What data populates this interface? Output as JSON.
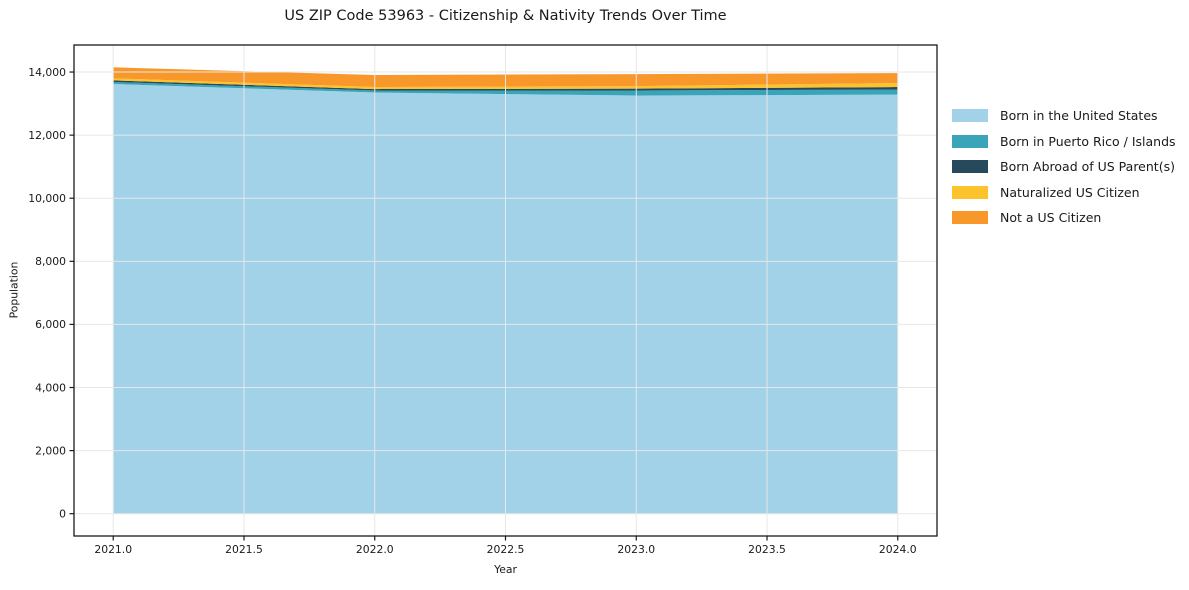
{
  "chart_data": {
    "type": "area",
    "stacked": true,
    "title": "US ZIP Code 53963 - Citizenship & Nativity Trends Over Time",
    "xlabel": "Year",
    "ylabel": "Population",
    "x": [
      2021,
      2022,
      2023,
      2024
    ],
    "series": [
      {
        "name": "Born in the United States",
        "color": "#a2d2e7",
        "values": [
          13620,
          13350,
          13255,
          13285
        ]
      },
      {
        "name": "Born in Puerto Rico / Islands",
        "color": "#3aa4b9",
        "values": [
          65,
          65,
          160,
          160
        ]
      },
      {
        "name": "Born Abroad of US Parent(s)",
        "color": "#27495c",
        "values": [
          50,
          45,
          60,
          80
        ]
      },
      {
        "name": "Naturalized US Citizen",
        "color": "#fcc32d",
        "values": [
          65,
          65,
          80,
          125
        ]
      },
      {
        "name": "Not a US Citizen",
        "color": "#f8982a",
        "values": [
          350,
          380,
          380,
          315
        ]
      }
    ],
    "totals": [
      14150,
      13905,
      13935,
      13965
    ],
    "xlim": [
      2020.85,
      2024.15
    ],
    "ylim": [
      -707,
      14857
    ],
    "xticks": [
      2021.0,
      2021.5,
      2022.0,
      2022.5,
      2023.0,
      2023.5,
      2024.0
    ],
    "yticks": [
      0,
      2000,
      4000,
      6000,
      8000,
      10000,
      12000,
      14000
    ],
    "grid": true,
    "grid_color": "#e7e7e7",
    "axis_color": "#1a1a1a",
    "legend_position": "right"
  }
}
